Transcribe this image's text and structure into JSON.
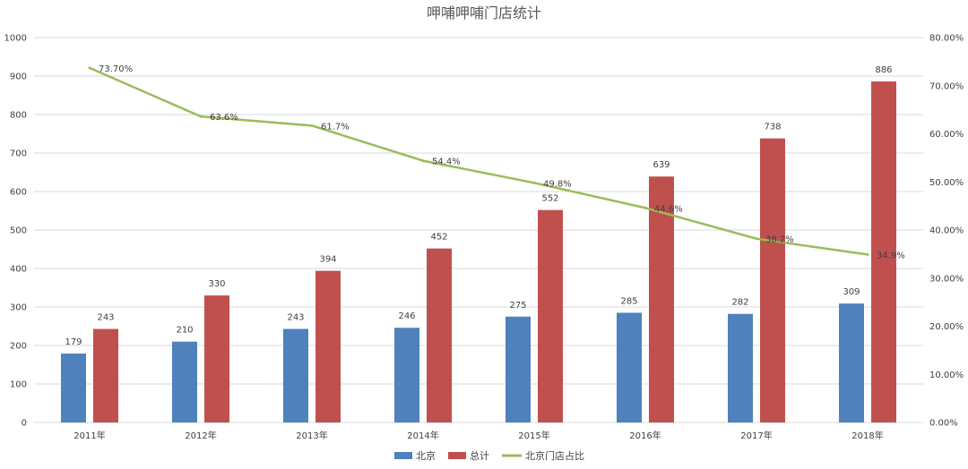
{
  "chart_data": {
    "type": "bar",
    "title": "呷哺呷哺门店统计",
    "categories": [
      "2011年",
      "2012年",
      "2013年",
      "2014年",
      "2015年",
      "2016年",
      "2017年",
      "2018年"
    ],
    "series": [
      {
        "name": "北京",
        "kind": "bar",
        "axis": "left",
        "color": "#4f81bd",
        "values": [
          179,
          210,
          243,
          246,
          275,
          285,
          282,
          309
        ],
        "labels": [
          "179",
          "210",
          "243",
          "246",
          "275",
          "285",
          "282",
          "309"
        ]
      },
      {
        "name": "总计",
        "kind": "bar",
        "axis": "left",
        "color": "#c0504d",
        "values": [
          243,
          330,
          394,
          452,
          552,
          639,
          738,
          886
        ],
        "labels": [
          "243",
          "330",
          "394",
          "452",
          "552",
          "639",
          "738",
          "886"
        ]
      },
      {
        "name": "北京门店占比",
        "kind": "line",
        "axis": "right",
        "color": "#9bbb59",
        "values": [
          73.7,
          63.6,
          61.7,
          54.4,
          49.8,
          44.6,
          38.2,
          34.9
        ],
        "labels": [
          "73.70%",
          "63.6%",
          "61.7%",
          "54.4%",
          "49.8%",
          "44.6%",
          "38.2%",
          "34.9%"
        ]
      }
    ],
    "y_left": {
      "range": [
        0,
        1000
      ],
      "ticks": [
        "0",
        "100",
        "200",
        "300",
        "400",
        "500",
        "600",
        "700",
        "800",
        "900",
        "1000"
      ]
    },
    "y_right": {
      "range": [
        0,
        80
      ],
      "ticks": [
        "0.00%",
        "10.00%",
        "20.00%",
        "30.00%",
        "40.00%",
        "50.00%",
        "60.00%",
        "70.00%",
        "80.00%"
      ]
    },
    "grid": true,
    "legend_position": "bottom"
  }
}
